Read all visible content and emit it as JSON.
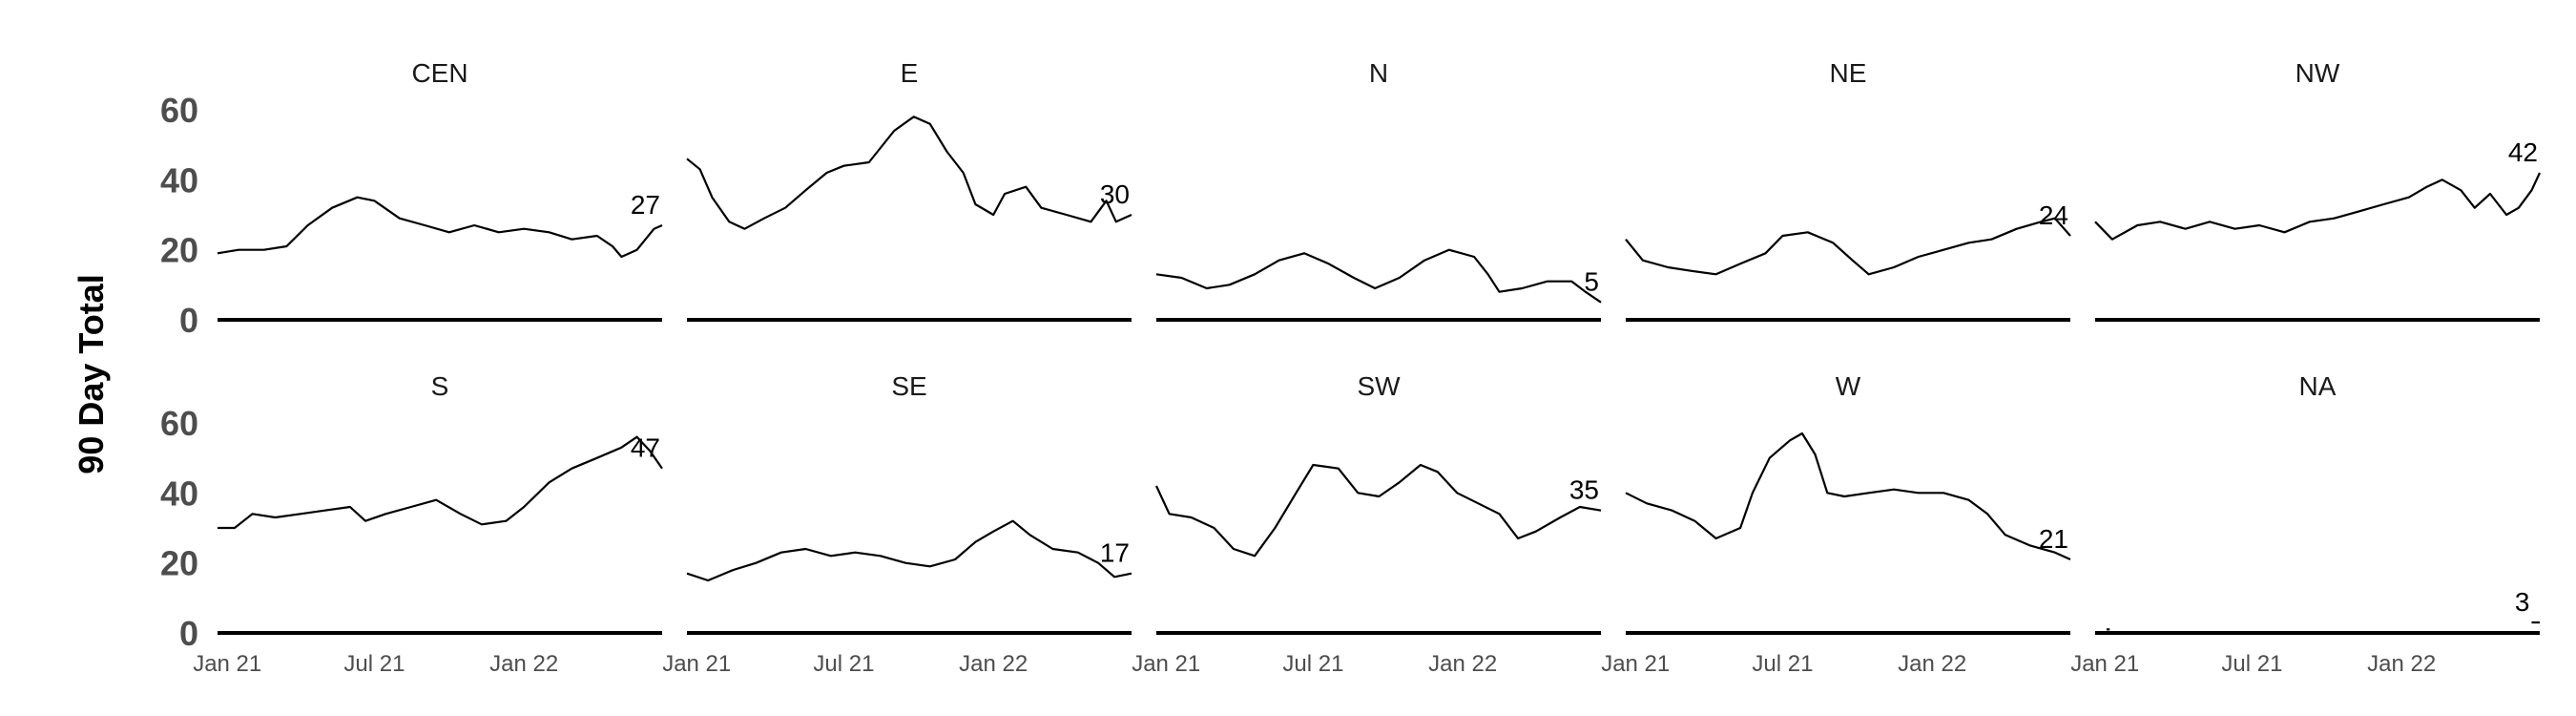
{
  "chart_data": {
    "type": "line",
    "facet_layout": {
      "rows": 2,
      "cols": 5
    },
    "ylabel": "90 Day Total",
    "ylim": [
      0,
      60
    ],
    "y_ticks": [
      "0",
      "20",
      "40",
      "60"
    ],
    "x_ticks": [
      {
        "label": "Jan 21",
        "date": "2021-01-01"
      },
      {
        "label": "Jul 21",
        "date": "2021-07-01"
      },
      {
        "label": "Jan 22",
        "date": "2022-01-01"
      }
    ],
    "x_range": [
      "2020-12-20",
      "2022-06-20"
    ],
    "grid": false,
    "line_color": "#000000",
    "facets": [
      {
        "name": "CEN",
        "end_label": "27",
        "points": [
          [
            "2020-12-20",
            19
          ],
          [
            "2021-01-15",
            20
          ],
          [
            "2021-02-15",
            20
          ],
          [
            "2021-03-15",
            21
          ],
          [
            "2021-04-10",
            27
          ],
          [
            "2021-05-10",
            32
          ],
          [
            "2021-06-10",
            35
          ],
          [
            "2021-07-01",
            34
          ],
          [
            "2021-08-01",
            29
          ],
          [
            "2021-09-01",
            27
          ],
          [
            "2021-10-01",
            25
          ],
          [
            "2021-11-01",
            27
          ],
          [
            "2021-12-01",
            25
          ],
          [
            "2022-01-01",
            26
          ],
          [
            "2022-02-01",
            25
          ],
          [
            "2022-03-01",
            23
          ],
          [
            "2022-04-01",
            24
          ],
          [
            "2022-04-20",
            21
          ],
          [
            "2022-05-01",
            18
          ],
          [
            "2022-05-20",
            20
          ],
          [
            "2022-06-10",
            26
          ],
          [
            "2022-06-20",
            27
          ]
        ]
      },
      {
        "name": "E",
        "end_label": "30",
        "points": [
          [
            "2020-12-20",
            46
          ],
          [
            "2021-01-05",
            43
          ],
          [
            "2021-01-20",
            35
          ],
          [
            "2021-02-10",
            28
          ],
          [
            "2021-03-01",
            26
          ],
          [
            "2021-03-25",
            29
          ],
          [
            "2021-04-20",
            32
          ],
          [
            "2021-05-15",
            37
          ],
          [
            "2021-06-10",
            42
          ],
          [
            "2021-07-01",
            44
          ],
          [
            "2021-08-01",
            45
          ],
          [
            "2021-09-01",
            54
          ],
          [
            "2021-09-25",
            58
          ],
          [
            "2021-10-15",
            56
          ],
          [
            "2021-11-05",
            48
          ],
          [
            "2021-11-25",
            42
          ],
          [
            "2021-12-10",
            33
          ],
          [
            "2022-01-01",
            30
          ],
          [
            "2022-01-15",
            36
          ],
          [
            "2022-02-10",
            38
          ],
          [
            "2022-03-01",
            32
          ],
          [
            "2022-04-01",
            30
          ],
          [
            "2022-05-01",
            28
          ],
          [
            "2022-05-20",
            34
          ],
          [
            "2022-06-01",
            28
          ],
          [
            "2022-06-20",
            30
          ]
        ]
      },
      {
        "name": "N",
        "end_label": "5",
        "points": [
          [
            "2020-12-20",
            13
          ],
          [
            "2021-01-20",
            12
          ],
          [
            "2021-02-20",
            9
          ],
          [
            "2021-03-20",
            10
          ],
          [
            "2021-04-20",
            13
          ],
          [
            "2021-05-20",
            17
          ],
          [
            "2021-06-20",
            19
          ],
          [
            "2021-07-20",
            16
          ],
          [
            "2021-08-20",
            12
          ],
          [
            "2021-09-15",
            9
          ],
          [
            "2021-10-15",
            12
          ],
          [
            "2021-11-15",
            17
          ],
          [
            "2021-12-15",
            20
          ],
          [
            "2022-01-15",
            18
          ],
          [
            "2022-02-01",
            13
          ],
          [
            "2022-02-15",
            8
          ],
          [
            "2022-03-15",
            9
          ],
          [
            "2022-04-15",
            11
          ],
          [
            "2022-05-15",
            11
          ],
          [
            "2022-06-01",
            8
          ],
          [
            "2022-06-20",
            5
          ]
        ]
      },
      {
        "name": "NE",
        "end_label": "24",
        "points": [
          [
            "2020-12-20",
            23
          ],
          [
            "2021-01-10",
            17
          ],
          [
            "2021-02-10",
            15
          ],
          [
            "2021-03-10",
            14
          ],
          [
            "2021-04-10",
            13
          ],
          [
            "2021-05-10",
            16
          ],
          [
            "2021-06-10",
            19
          ],
          [
            "2021-07-01",
            24
          ],
          [
            "2021-08-01",
            25
          ],
          [
            "2021-09-01",
            22
          ],
          [
            "2021-09-25",
            17
          ],
          [
            "2021-10-15",
            13
          ],
          [
            "2021-11-15",
            15
          ],
          [
            "2021-12-15",
            18
          ],
          [
            "2022-01-15",
            20
          ],
          [
            "2022-02-15",
            22
          ],
          [
            "2022-03-15",
            23
          ],
          [
            "2022-04-15",
            26
          ],
          [
            "2022-05-15",
            28
          ],
          [
            "2022-06-01",
            29
          ],
          [
            "2022-06-20",
            24
          ]
        ]
      },
      {
        "name": "NW",
        "end_label": "42",
        "points": [
          [
            "2020-12-20",
            28
          ],
          [
            "2021-01-10",
            23
          ],
          [
            "2021-02-10",
            27
          ],
          [
            "2021-03-10",
            28
          ],
          [
            "2021-04-10",
            26
          ],
          [
            "2021-05-10",
            28
          ],
          [
            "2021-06-10",
            26
          ],
          [
            "2021-07-10",
            27
          ],
          [
            "2021-08-10",
            25
          ],
          [
            "2021-09-10",
            28
          ],
          [
            "2021-10-10",
            29
          ],
          [
            "2021-11-10",
            31
          ],
          [
            "2021-12-10",
            33
          ],
          [
            "2022-01-10",
            35
          ],
          [
            "2022-02-01",
            38
          ],
          [
            "2022-02-20",
            40
          ],
          [
            "2022-03-15",
            37
          ],
          [
            "2022-04-01",
            32
          ],
          [
            "2022-04-20",
            36
          ],
          [
            "2022-05-10",
            30
          ],
          [
            "2022-05-25",
            32
          ],
          [
            "2022-06-10",
            37
          ],
          [
            "2022-06-20",
            42
          ]
        ]
      },
      {
        "name": "S",
        "end_label": "47",
        "points": [
          [
            "2020-12-20",
            30
          ],
          [
            "2021-01-10",
            30
          ],
          [
            "2021-02-01",
            34
          ],
          [
            "2021-03-01",
            33
          ],
          [
            "2021-04-01",
            34
          ],
          [
            "2021-05-01",
            35
          ],
          [
            "2021-06-01",
            36
          ],
          [
            "2021-06-20",
            32
          ],
          [
            "2021-07-15",
            34
          ],
          [
            "2021-08-15",
            36
          ],
          [
            "2021-09-15",
            38
          ],
          [
            "2021-10-15",
            34
          ],
          [
            "2021-11-10",
            31
          ],
          [
            "2021-12-10",
            32
          ],
          [
            "2022-01-01",
            36
          ],
          [
            "2022-02-01",
            43
          ],
          [
            "2022-03-01",
            47
          ],
          [
            "2022-04-01",
            50
          ],
          [
            "2022-05-01",
            53
          ],
          [
            "2022-05-20",
            56
          ],
          [
            "2022-06-05",
            52
          ],
          [
            "2022-06-20",
            47
          ]
        ]
      },
      {
        "name": "SE",
        "end_label": "17",
        "points": [
          [
            "2020-12-20",
            17
          ],
          [
            "2021-01-15",
            15
          ],
          [
            "2021-02-15",
            18
          ],
          [
            "2021-03-15",
            20
          ],
          [
            "2021-04-15",
            23
          ],
          [
            "2021-05-15",
            24
          ],
          [
            "2021-06-15",
            22
          ],
          [
            "2021-07-15",
            23
          ],
          [
            "2021-08-15",
            22
          ],
          [
            "2021-09-15",
            20
          ],
          [
            "2021-10-15",
            19
          ],
          [
            "2021-11-15",
            21
          ],
          [
            "2021-12-10",
            26
          ],
          [
            "2022-01-01",
            29
          ],
          [
            "2022-01-25",
            32
          ],
          [
            "2022-02-15",
            28
          ],
          [
            "2022-03-15",
            24
          ],
          [
            "2022-04-15",
            23
          ],
          [
            "2022-05-10",
            20
          ],
          [
            "2022-05-30",
            16
          ],
          [
            "2022-06-20",
            17
          ]
        ]
      },
      {
        "name": "SW",
        "end_label": "35",
        "points": [
          [
            "2020-12-20",
            42
          ],
          [
            "2021-01-05",
            34
          ],
          [
            "2021-02-01",
            33
          ],
          [
            "2021-03-01",
            30
          ],
          [
            "2021-03-25",
            24
          ],
          [
            "2021-04-20",
            22
          ],
          [
            "2021-05-15",
            30
          ],
          [
            "2021-06-10",
            40
          ],
          [
            "2021-07-01",
            48
          ],
          [
            "2021-08-01",
            47
          ],
          [
            "2021-08-25",
            40
          ],
          [
            "2021-09-20",
            39
          ],
          [
            "2021-10-15",
            43
          ],
          [
            "2021-11-10",
            48
          ],
          [
            "2021-12-01",
            46
          ],
          [
            "2021-12-25",
            40
          ],
          [
            "2022-01-20",
            37
          ],
          [
            "2022-02-15",
            34
          ],
          [
            "2022-03-10",
            27
          ],
          [
            "2022-04-01",
            29
          ],
          [
            "2022-05-01",
            33
          ],
          [
            "2022-05-25",
            36
          ],
          [
            "2022-06-20",
            35
          ]
        ]
      },
      {
        "name": "W",
        "end_label": "21",
        "points": [
          [
            "2020-12-20",
            40
          ],
          [
            "2021-01-15",
            37
          ],
          [
            "2021-02-15",
            35
          ],
          [
            "2021-03-15",
            32
          ],
          [
            "2021-04-10",
            27
          ],
          [
            "2021-05-10",
            30
          ],
          [
            "2021-05-25",
            40
          ],
          [
            "2021-06-15",
            50
          ],
          [
            "2021-07-10",
            55
          ],
          [
            "2021-07-25",
            57
          ],
          [
            "2021-08-10",
            51
          ],
          [
            "2021-08-25",
            40
          ],
          [
            "2021-09-15",
            39
          ],
          [
            "2021-10-15",
            40
          ],
          [
            "2021-11-15",
            41
          ],
          [
            "2021-12-15",
            40
          ],
          [
            "2022-01-15",
            40
          ],
          [
            "2022-02-15",
            38
          ],
          [
            "2022-03-10",
            34
          ],
          [
            "2022-04-01",
            28
          ],
          [
            "2022-05-01",
            25
          ],
          [
            "2022-06-01",
            23
          ],
          [
            "2022-06-20",
            21
          ]
        ]
      },
      {
        "name": "NA",
        "end_label": "3",
        "points": [
          [
            "2021-01-03",
            1
          ],
          [
            "2021-01-07",
            1
          ]
        ],
        "end_tick": [
          [
            "2022-06-10",
            3
          ],
          [
            "2022-06-20",
            3
          ]
        ]
      }
    ]
  }
}
